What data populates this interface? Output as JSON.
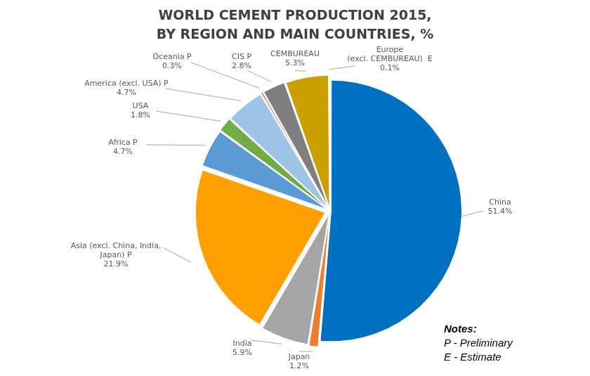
{
  "chart_data": {
    "type": "pie",
    "title": [
      "WORLD CEMENT PRODUCTION 2015,",
      "BY REGION AND MAIN COUNTRIES, %"
    ],
    "categories": [
      "China",
      "Japan",
      "India",
      "Asia (excl. China, India, Japan) P",
      "Africa P",
      "USA",
      "America (excl. USA) P",
      "Oceania P",
      "CIS P",
      "CEMBUREAU",
      "Europe (excl. CEMBUREAU)  E"
    ],
    "values": [
      51.4,
      1.2,
      5.9,
      21.9,
      4.7,
      1.8,
      4.7,
      0.3,
      2.8,
      5.3,
      0.1
    ],
    "value_labels": [
      "51.4%",
      "1.2%",
      "5.9%",
      "21.9%",
      "4.7%",
      "1.8%",
      "4.7%",
      "0.3%",
      "2.8%",
      "5.3%",
      "0.1%"
    ],
    "colors": [
      "#0070c0",
      "#ed7d31",
      "#a5a5a5",
      "#ffa000",
      "#5b9bd5",
      "#70ad47",
      "#9dc3e6",
      "#c55a11",
      "#7f7f7f",
      "#c9a000",
      "#4bacc6"
    ],
    "data_labels": true,
    "annotations": [
      "Notes:",
      "P - Preliminary",
      "E - Estimate"
    ]
  }
}
